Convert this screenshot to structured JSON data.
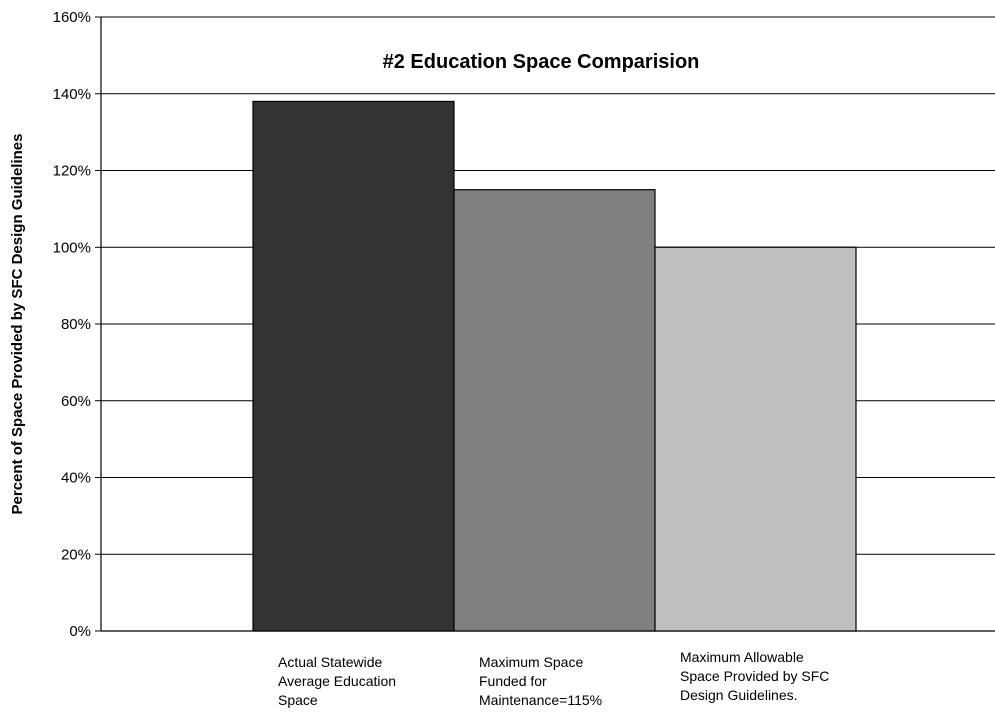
{
  "chart_data": {
    "type": "bar",
    "title": "#2 Education Space Comparision",
    "xlabel": "",
    "ylabel": "Percent of Space Provided by SFC Design Guidelines",
    "ylim": [
      0,
      160
    ],
    "yticks": [
      0,
      20,
      40,
      60,
      80,
      100,
      120,
      140,
      160
    ],
    "ytick_labels": [
      "0%",
      "20%",
      "40%",
      "60%",
      "80%",
      "100%",
      "120%",
      "140%",
      "160%"
    ],
    "categories": [
      "Actual Statewide\nAverage Education\nSpace",
      "Maximum Space\nFunded for\nMaintenance=115%",
      "Maximum Allowable\nSpace Provided by SFC\nDesign Guidelines."
    ],
    "values": [
      138,
      115,
      100
    ],
    "colors": [
      "#333333",
      "#808080",
      "#c0c0c0"
    ],
    "grid": true,
    "legend": "none"
  }
}
